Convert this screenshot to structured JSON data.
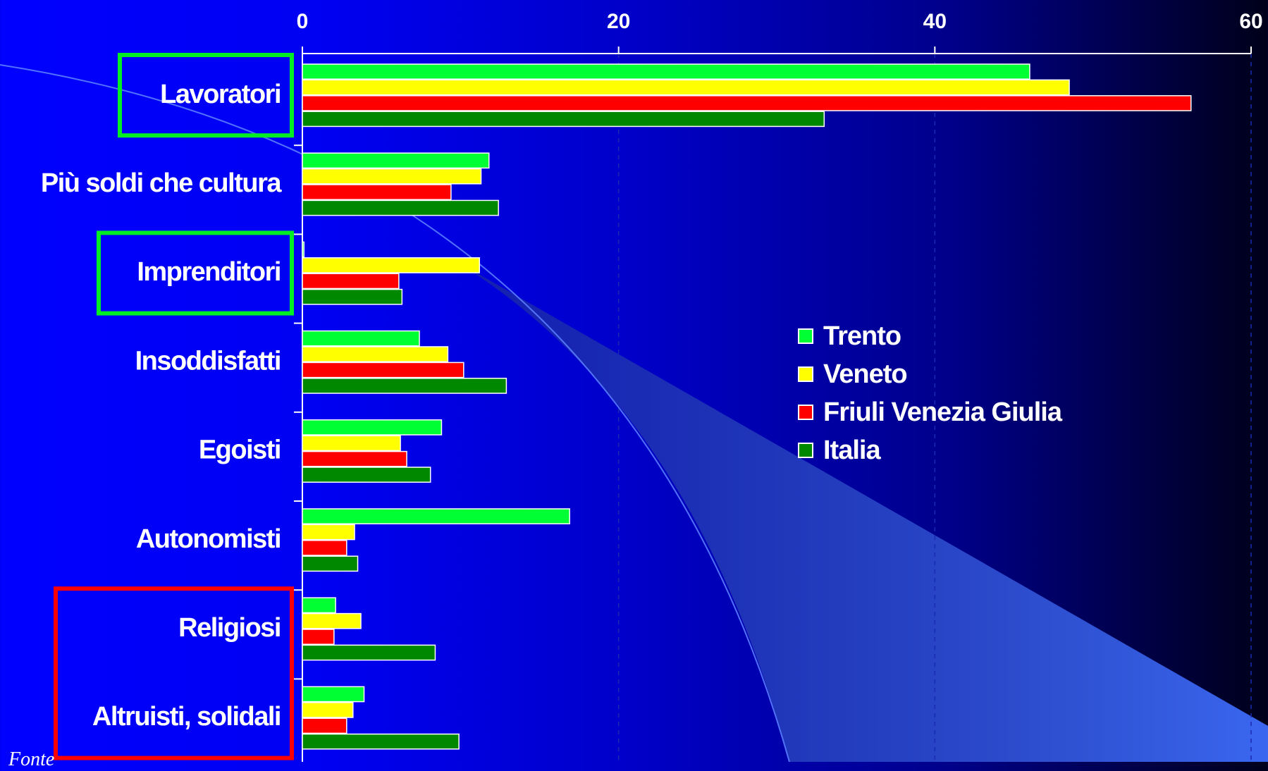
{
  "chart_data": {
    "type": "bar",
    "orientation": "horizontal",
    "categories": [
      "Lavoratori",
      "Più soldi che cultura",
      "Imprenditori",
      "Insoddisfatti",
      "Egoisti",
      "Autonomisti",
      "Religiosi",
      "Altruisti, solidali"
    ],
    "series": [
      {
        "name": "Trento",
        "color": "#00ff33",
        "values": [
          46,
          11.8,
          0.1,
          7.4,
          8.8,
          16.9,
          2.1,
          3.9
        ]
      },
      {
        "name": "Veneto",
        "color": "#ffff00",
        "values": [
          48.5,
          11.3,
          11.2,
          9.2,
          6.2,
          3.3,
          3.7,
          3.2
        ]
      },
      {
        "name": "Friuli Venezia Giulia",
        "color": "#ff0000",
        "values": [
          56.2,
          9.4,
          6.1,
          10.2,
          6.6,
          2.8,
          2.0,
          2.8
        ]
      },
      {
        "name": "Italia",
        "color": "#008800",
        "values": [
          33,
          12.4,
          6.3,
          12.9,
          8.1,
          3.5,
          8.4,
          9.9
        ]
      }
    ],
    "xlim": [
      0,
      60
    ],
    "xticks": [
      0,
      20,
      40,
      60
    ],
    "grid": false,
    "legend_position": "right",
    "highlighted": [
      {
        "category": "Lavoratori",
        "color": "#00ee22"
      },
      {
        "category": "Imprenditori",
        "color": "#00ee22"
      },
      {
        "category": "Religiosi",
        "color": "#ff0000"
      },
      {
        "category": "Altruisti, solidali",
        "color": "#ff0000"
      }
    ]
  },
  "footer_partial": "Fonte"
}
